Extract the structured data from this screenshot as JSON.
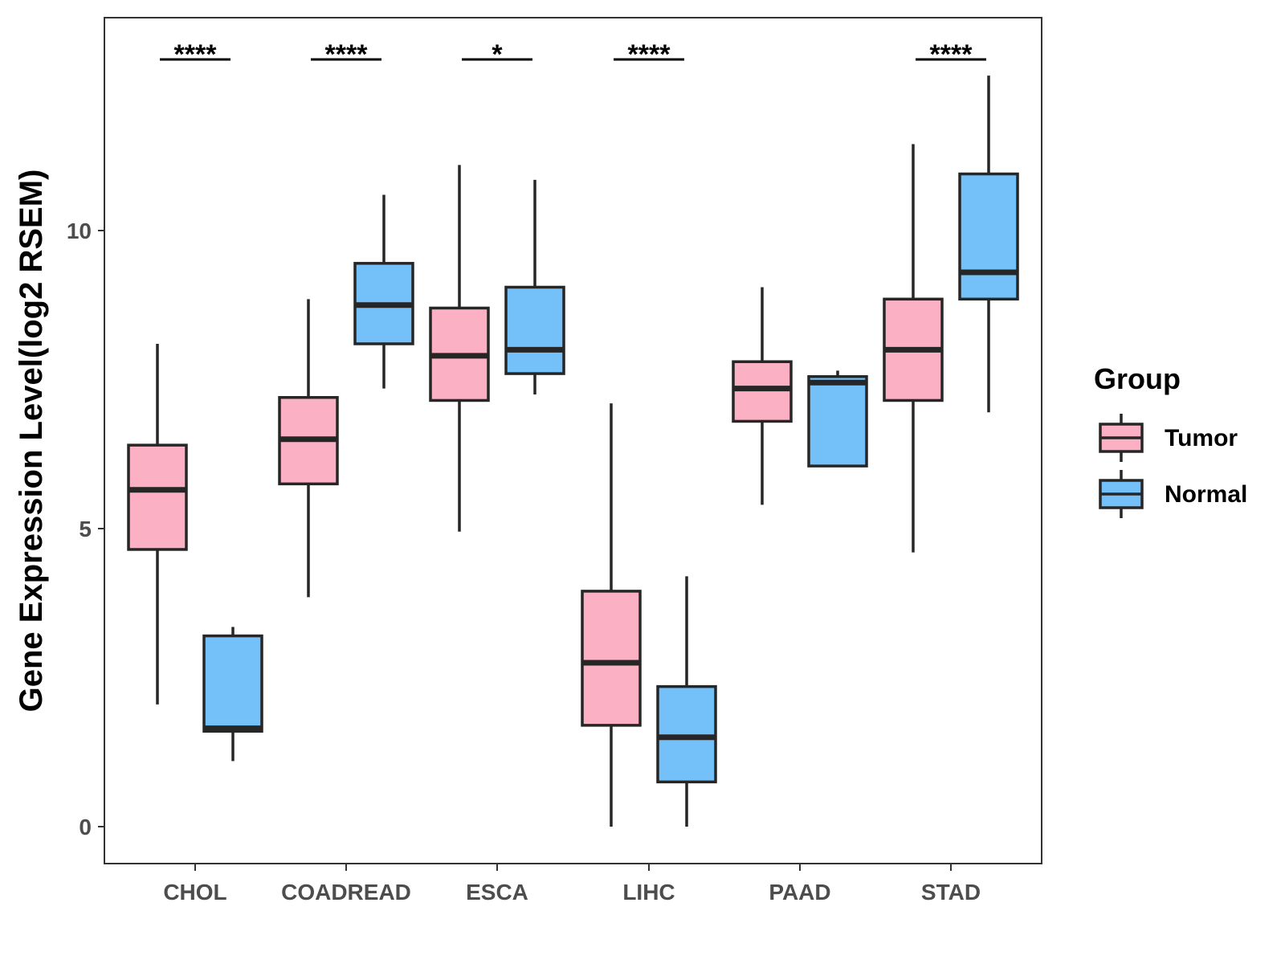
{
  "chart_data": {
    "type": "boxplot",
    "title": "",
    "xlabel": "",
    "ylabel": "Gene Expression Level(log2 RSEM)",
    "ylim": [
      -0.6,
      13.6
    ],
    "yticks": [
      0,
      5,
      10
    ],
    "grid": false,
    "legend": {
      "title": "Group",
      "placement": "right"
    },
    "categories": [
      "CHOL",
      "COADREAD",
      "ESCA",
      "LIHC",
      "PAAD",
      "STAD"
    ],
    "series": [
      {
        "name": "Tumor",
        "color": "#FBB1C3",
        "boxes": [
          {
            "min": 2.05,
            "q1": 4.65,
            "median": 5.65,
            "q3": 6.4,
            "max": 8.1
          },
          {
            "min": 3.85,
            "q1": 5.75,
            "median": 6.5,
            "q3": 7.2,
            "max": 8.85
          },
          {
            "min": 4.95,
            "q1": 7.15,
            "median": 7.9,
            "q3": 8.7,
            "max": 11.1
          },
          {
            "min": 0.0,
            "q1": 1.7,
            "median": 2.75,
            "q3": 3.95,
            "max": 7.1
          },
          {
            "min": 5.4,
            "q1": 6.8,
            "median": 7.35,
            "q3": 7.8,
            "max": 9.05
          },
          {
            "min": 4.6,
            "q1": 7.15,
            "median": 8.0,
            "q3": 8.85,
            "max": 11.45
          }
        ]
      },
      {
        "name": "Normal",
        "color": "#74C0F8",
        "boxes": [
          {
            "min": 1.1,
            "q1": 1.6,
            "median": 1.65,
            "q3": 3.2,
            "max": 3.35
          },
          {
            "min": 7.35,
            "q1": 8.1,
            "median": 8.75,
            "q3": 9.45,
            "max": 10.6
          },
          {
            "min": 7.25,
            "q1": 7.6,
            "median": 8.0,
            "q3": 9.05,
            "max": 10.85
          },
          {
            "min": 0.0,
            "q1": 0.75,
            "median": 1.5,
            "q3": 2.35,
            "max": 4.2
          },
          {
            "min": 6.05,
            "q1": 6.05,
            "median": 7.45,
            "q3": 7.55,
            "max": 7.65
          },
          {
            "min": 6.95,
            "q1": 8.85,
            "median": 9.3,
            "q3": 10.95,
            "max": 12.6
          }
        ]
      }
    ],
    "significance": [
      "****",
      "****",
      "*",
      "****",
      "",
      "****"
    ],
    "colors": {
      "outline": "#262626",
      "axis": "#333333",
      "tick_label": "#4d4d4d",
      "text": "#000000"
    }
  }
}
